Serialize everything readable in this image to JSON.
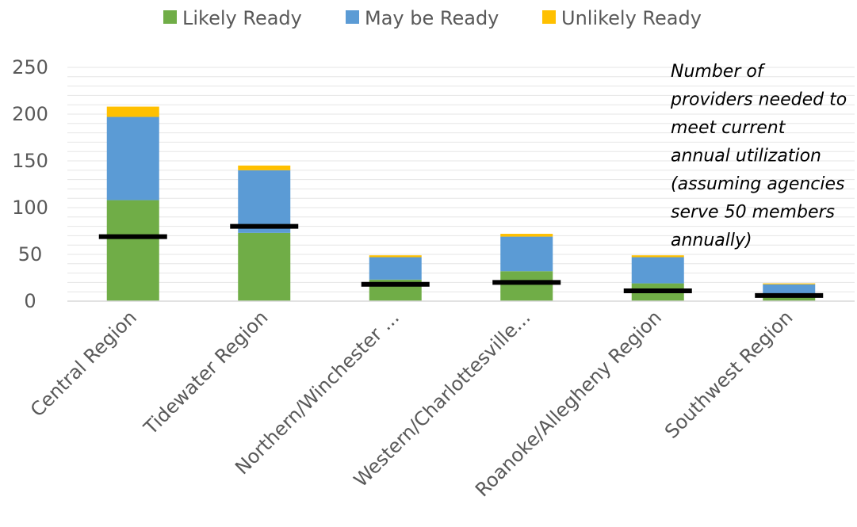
{
  "chart_data": {
    "type": "bar",
    "stacked": true,
    "title": "",
    "xlabel": "",
    "ylabel": "",
    "ylim": [
      0,
      250
    ],
    "yticks": [
      0,
      50,
      100,
      150,
      200,
      250
    ],
    "grid": true,
    "legend_position": "top",
    "categories": [
      "Central Region",
      "Tidewater Region",
      "Northern/Winchester ...",
      "Western/Charlottesville...",
      "Roanoke/Allegheny Region",
      "Southwest Region"
    ],
    "series": [
      {
        "name": "Likely Ready",
        "color": "#70AD47",
        "values": [
          108,
          73,
          23,
          32,
          19,
          5
        ]
      },
      {
        "name": "May be Ready",
        "color": "#5B9BD5",
        "values": [
          89,
          67,
          24,
          37,
          28,
          13
        ]
      },
      {
        "name": "Unlikely Ready",
        "color": "#FFC000",
        "values": [
          11,
          5,
          2,
          3,
          2,
          1
        ]
      }
    ],
    "needed_providers": {
      "color": "#000000",
      "values": [
        69,
        80,
        18,
        20,
        11,
        6
      ]
    },
    "annotation": [
      "Number of",
      "providers needed to",
      "meet current",
      "annual utilization",
      "(assuming agencies",
      "serve 50 members",
      "annually)"
    ]
  }
}
